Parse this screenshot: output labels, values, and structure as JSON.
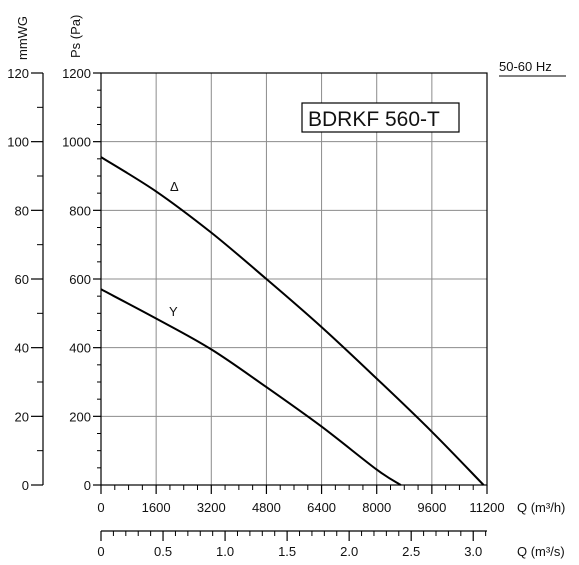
{
  "chart_data": {
    "type": "line",
    "title": "BDRKF 560-T",
    "frequency_label": "50-60 Hz",
    "y_left_pa": {
      "label": "Ps (Pa)",
      "ticks": [
        "0",
        "200",
        "400",
        "600",
        "800",
        "1000",
        "1200"
      ],
      "range": [
        0,
        1200
      ]
    },
    "y_left_mmwg": {
      "label": "mmWG",
      "ticks": [
        "0",
        "20",
        "40",
        "60",
        "80",
        "100",
        "120"
      ],
      "range": [
        0,
        120
      ]
    },
    "x_m3h": {
      "label": "Q (m³/h)",
      "ticks": [
        "0",
        "1600",
        "3200",
        "4800",
        "6400",
        "8000",
        "9600",
        "11200"
      ],
      "range": [
        0,
        11200
      ]
    },
    "x_m3s": {
      "label": "Q (m³/s)",
      "ticks": [
        "0",
        "0.5",
        "1.0",
        "1.5",
        "2.0",
        "2.5",
        "3.0"
      ],
      "range": [
        0,
        3.111
      ]
    },
    "grid": true,
    "series": [
      {
        "name": "Δ",
        "x": [
          0,
          1600,
          3200,
          4800,
          6400,
          8000,
          9600,
          11100
        ],
        "y": [
          955,
          855,
          735,
          600,
          460,
          310,
          155,
          0
        ]
      },
      {
        "name": "Y",
        "x": [
          0,
          1600,
          3200,
          4800,
          6400,
          8000,
          8700
        ],
        "y": [
          570,
          485,
          395,
          285,
          170,
          45,
          0
        ]
      }
    ]
  }
}
